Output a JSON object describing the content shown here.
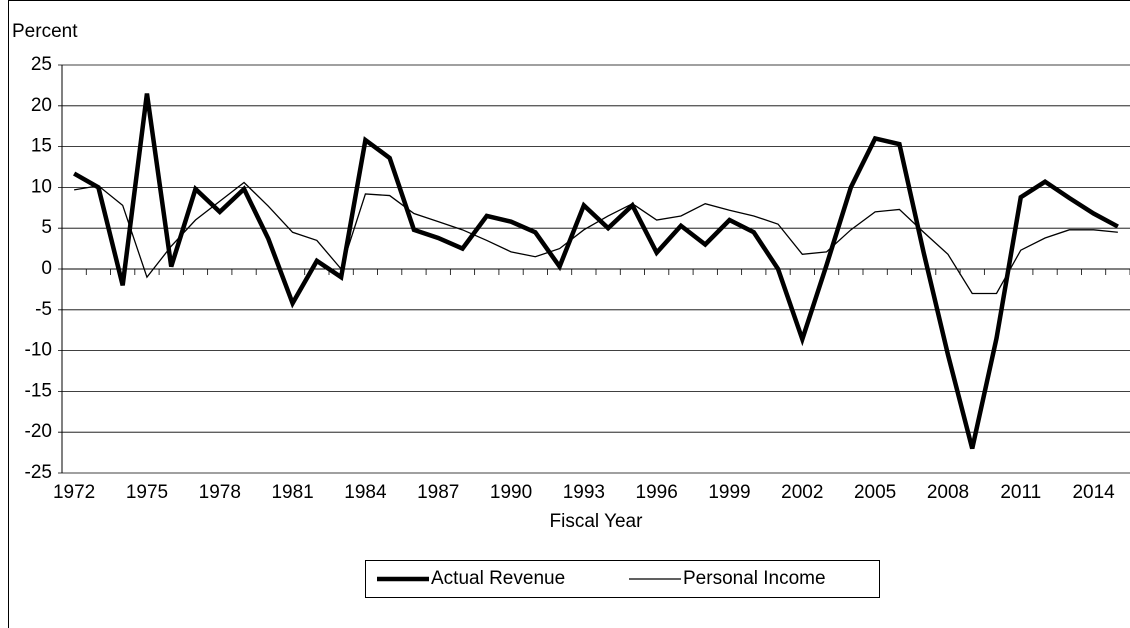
{
  "chart_data": {
    "type": "line",
    "y_label": "Percent",
    "x_label": "Fiscal Year",
    "categories": [
      "1972",
      null,
      null,
      "1975",
      null,
      null,
      "1978",
      null,
      null,
      "1981",
      null,
      null,
      "1984",
      null,
      null,
      "1987",
      null,
      null,
      "1990",
      null,
      null,
      "1993",
      null,
      null,
      "1996",
      null,
      null,
      "1999",
      null,
      null,
      "2002",
      null,
      null,
      "2005",
      null,
      null,
      "2008",
      null,
      null,
      "2011",
      null,
      null,
      "2014",
      null
    ],
    "series": [
      {
        "name": "Actual Revenue",
        "color": "#000000",
        "values": [
          11.7,
          10,
          -2,
          21.5,
          0.3,
          9.8,
          7,
          9.8,
          3.7,
          -4.2,
          1,
          -1,
          15.8,
          13.6,
          4.8,
          3.8,
          2.5,
          6.5,
          5.8,
          4.5,
          0.3,
          7.8,
          5,
          7.8,
          2,
          5.3,
          3,
          6,
          4.5,
          0,
          -8.6,
          0.5,
          10,
          16,
          15.3,
          2,
          -10.5,
          -22,
          -8.5,
          8.8,
          10.7,
          8.7,
          6.8,
          5.2
        ]
      },
      {
        "name": "Personal Income",
        "color": "#000000",
        "values": [
          9.7,
          10.2,
          7.8,
          -1,
          2.8,
          6,
          8.3,
          10.6,
          7.7,
          4.5,
          3.5,
          0,
          9.2,
          9,
          6.8,
          5.8,
          4.8,
          3.5,
          2.1,
          1.5,
          2.5,
          4.8,
          6.5,
          8,
          6,
          6.5,
          8,
          7.2,
          6.5,
          5.5,
          1.8,
          2.1,
          4.8,
          7,
          7.3,
          4.5,
          1.8,
          -3,
          -3,
          2.3,
          3.8,
          4.8,
          4.8,
          4.5
        ]
      }
    ],
    "ylim": [
      -25,
      25
    ],
    "yticks": [
      -25,
      -20,
      -15,
      -10,
      -5,
      0,
      5,
      10,
      15,
      20,
      25
    ],
    "grid": true,
    "legend": "bottom"
  }
}
